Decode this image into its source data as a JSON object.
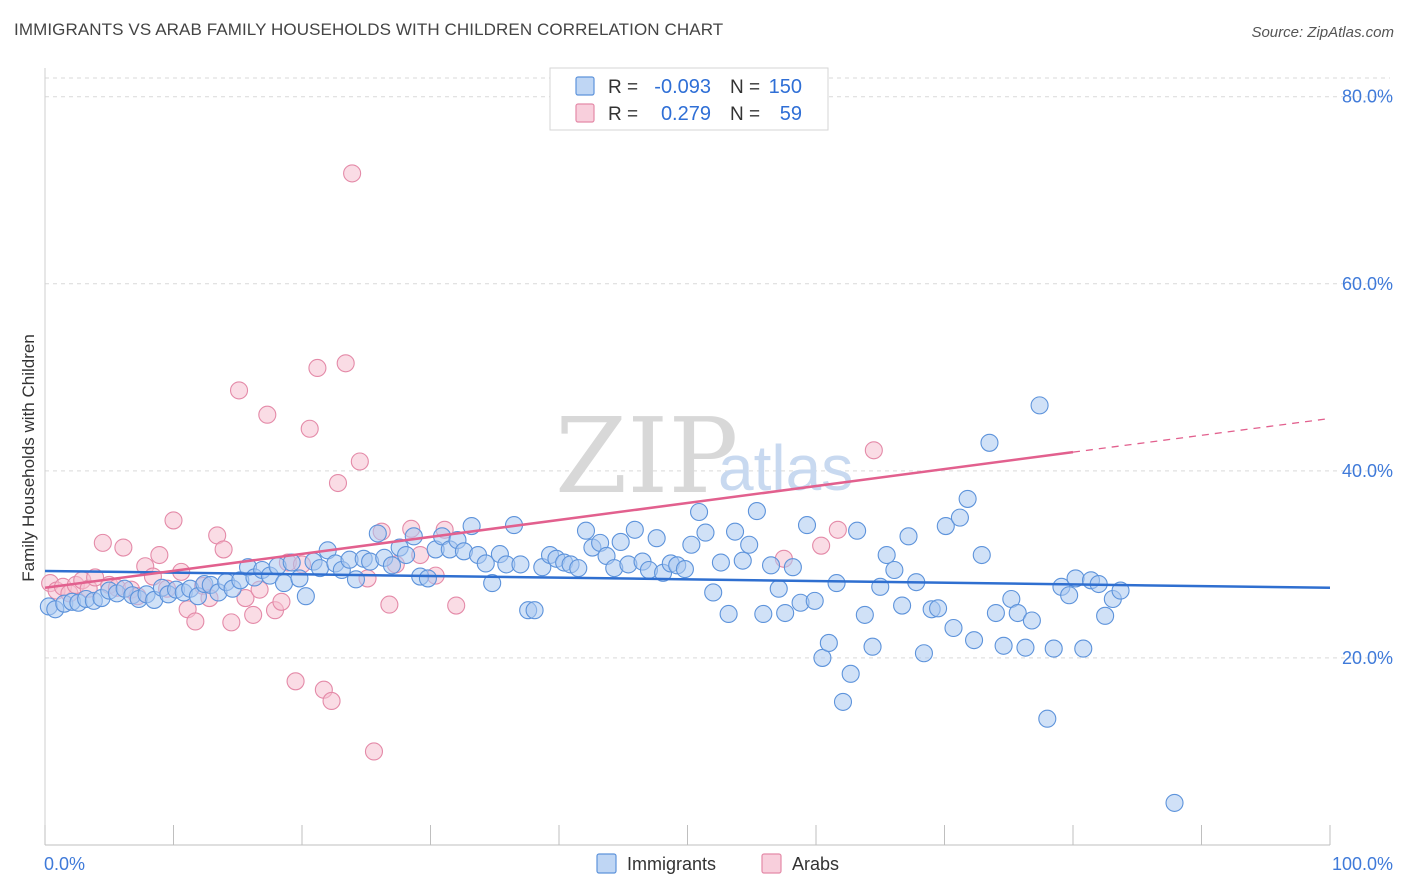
{
  "title": "IMMIGRANTS VS ARAB FAMILY HOUSEHOLDS WITH CHILDREN CORRELATION CHART",
  "source": "Source: ZipAtlas.com",
  "watermark": {
    "zip": "ZIP",
    "atlas": "atlas"
  },
  "colors": {
    "immigrants_fill": "#aac8f0",
    "immigrants_stroke": "#5d93db",
    "immigrants_line": "#2f6fd0",
    "arabs_fill": "#f6bfd0",
    "arabs_stroke": "#e48aa8",
    "arabs_line": "#e2608e",
    "axis_label": "#3f7ad9",
    "grid": "#d9d9d9"
  },
  "legend": {
    "rows": [
      {
        "r_label": "R =",
        "r_value": "-0.093",
        "n_label": "N =",
        "n_value": "150"
      },
      {
        "r_label": "R =",
        "r_value": "0.279",
        "n_label": "N =",
        "n_value": "59"
      }
    ]
  },
  "chart_data": {
    "type": "scatter",
    "title": "IMMIGRANTS VS ARAB FAMILY HOUSEHOLDS WITH CHILDREN CORRELATION CHART",
    "xlabel": "",
    "ylabel": "Family Households with Children",
    "xlim": [
      0,
      100
    ],
    "ylim": [
      0,
      82
    ],
    "x_ticks": [
      "0.0%",
      "100.0%"
    ],
    "y_ticks": [
      {
        "value": 20,
        "label": "20.0%"
      },
      {
        "value": 40,
        "label": "40.0%"
      },
      {
        "value": 60,
        "label": "60.0%"
      },
      {
        "value": 80,
        "label": "80.0%"
      }
    ],
    "grid": true,
    "legend_position": "top-center",
    "series": [
      {
        "name": "Immigrants",
        "r": -0.093,
        "n": 150,
        "trend": {
          "x0": 0,
          "y0": 29.3,
          "x1": 100,
          "y1": 27.5
        },
        "points": [
          [
            0.3,
            25.5
          ],
          [
            0.8,
            25.2
          ],
          [
            1.5,
            25.8
          ],
          [
            2.1,
            26.0
          ],
          [
            2.6,
            25.9
          ],
          [
            3.2,
            26.3
          ],
          [
            3.8,
            26.1
          ],
          [
            4.4,
            26.4
          ],
          [
            5.0,
            27.2
          ],
          [
            5.6,
            26.9
          ],
          [
            6.2,
            27.4
          ],
          [
            6.8,
            26.7
          ],
          [
            7.3,
            26.3
          ],
          [
            7.9,
            26.8
          ],
          [
            8.5,
            26.2
          ],
          [
            9.1,
            27.5
          ],
          [
            9.6,
            26.8
          ],
          [
            10.2,
            27.3
          ],
          [
            10.8,
            27.0
          ],
          [
            11.3,
            27.4
          ],
          [
            11.9,
            26.6
          ],
          [
            12.4,
            27.9
          ],
          [
            12.9,
            27.8
          ],
          [
            13.5,
            27.0
          ],
          [
            14.1,
            28.1
          ],
          [
            14.6,
            27.4
          ],
          [
            15.2,
            28.3
          ],
          [
            15.8,
            29.7
          ],
          [
            16.3,
            28.6
          ],
          [
            16.9,
            29.4
          ],
          [
            17.5,
            28.8
          ],
          [
            18.1,
            29.8
          ],
          [
            18.6,
            28.0
          ],
          [
            19.2,
            30.2
          ],
          [
            19.8,
            28.5
          ],
          [
            20.3,
            26.6
          ],
          [
            20.9,
            30.3
          ],
          [
            21.4,
            29.6
          ],
          [
            22.0,
            31.5
          ],
          [
            22.6,
            30.1
          ],
          [
            23.1,
            29.4
          ],
          [
            23.7,
            30.5
          ],
          [
            24.2,
            28.4
          ],
          [
            24.8,
            30.6
          ],
          [
            25.3,
            30.3
          ],
          [
            25.9,
            33.3
          ],
          [
            26.4,
            30.7
          ],
          [
            27.0,
            29.9
          ],
          [
            27.6,
            31.8
          ],
          [
            28.1,
            31.0
          ],
          [
            28.7,
            33.0
          ],
          [
            29.2,
            28.7
          ],
          [
            29.8,
            28.5
          ],
          [
            30.4,
            31.6
          ],
          [
            30.9,
            33.0
          ],
          [
            31.5,
            31.6
          ],
          [
            32.1,
            32.6
          ],
          [
            32.6,
            31.4
          ],
          [
            33.2,
            34.1
          ],
          [
            33.7,
            31.0
          ],
          [
            34.3,
            30.1
          ],
          [
            34.8,
            28.0
          ],
          [
            35.4,
            31.1
          ],
          [
            35.9,
            30.0
          ],
          [
            36.5,
            34.2
          ],
          [
            37.0,
            30.0
          ],
          [
            37.6,
            25.1
          ],
          [
            38.1,
            25.1
          ],
          [
            38.7,
            29.7
          ],
          [
            39.3,
            31.0
          ],
          [
            39.8,
            30.6
          ],
          [
            40.4,
            30.2
          ],
          [
            40.9,
            30.0
          ],
          [
            41.5,
            29.6
          ],
          [
            42.1,
            33.6
          ],
          [
            42.6,
            31.8
          ],
          [
            43.2,
            32.3
          ],
          [
            43.7,
            30.9
          ],
          [
            44.3,
            29.6
          ],
          [
            44.8,
            32.4
          ],
          [
            45.4,
            30.0
          ],
          [
            45.9,
            33.7
          ],
          [
            46.5,
            30.3
          ],
          [
            47.0,
            29.4
          ],
          [
            47.6,
            32.8
          ],
          [
            48.1,
            29.1
          ],
          [
            48.7,
            30.1
          ],
          [
            49.2,
            29.9
          ],
          [
            49.8,
            29.5
          ],
          [
            50.3,
            32.1
          ],
          [
            50.9,
            35.6
          ],
          [
            51.4,
            33.4
          ],
          [
            52.0,
            27.0
          ],
          [
            52.6,
            30.2
          ],
          [
            53.2,
            24.7
          ],
          [
            53.7,
            33.5
          ],
          [
            54.3,
            30.4
          ],
          [
            54.8,
            32.1
          ],
          [
            55.4,
            35.7
          ],
          [
            55.9,
            24.7
          ],
          [
            56.5,
            29.9
          ],
          [
            57.1,
            27.4
          ],
          [
            57.6,
            24.8
          ],
          [
            58.2,
            29.7
          ],
          [
            58.8,
            25.9
          ],
          [
            59.3,
            34.2
          ],
          [
            59.9,
            26.1
          ],
          [
            60.5,
            20.0
          ],
          [
            61.0,
            21.6
          ],
          [
            61.6,
            28.0
          ],
          [
            62.1,
            15.3
          ],
          [
            62.7,
            18.3
          ],
          [
            63.2,
            33.6
          ],
          [
            63.8,
            24.6
          ],
          [
            64.4,
            21.2
          ],
          [
            65.0,
            27.6
          ],
          [
            65.5,
            31.0
          ],
          [
            66.1,
            29.4
          ],
          [
            66.7,
            25.6
          ],
          [
            67.2,
            33.0
          ],
          [
            67.8,
            28.1
          ],
          [
            68.4,
            20.5
          ],
          [
            69.0,
            25.2
          ],
          [
            69.5,
            25.3
          ],
          [
            70.1,
            34.1
          ],
          [
            70.7,
            23.2
          ],
          [
            71.2,
            35.0
          ],
          [
            71.8,
            37.0
          ],
          [
            72.3,
            21.9
          ],
          [
            72.9,
            31.0
          ],
          [
            73.5,
            43.0
          ],
          [
            74.0,
            24.8
          ],
          [
            74.6,
            21.3
          ],
          [
            75.2,
            26.3
          ],
          [
            75.7,
            24.8
          ],
          [
            76.3,
            21.1
          ],
          [
            76.8,
            24.0
          ],
          [
            77.4,
            47.0
          ],
          [
            78.0,
            13.5
          ],
          [
            78.5,
            21.0
          ],
          [
            79.1,
            27.6
          ],
          [
            79.7,
            26.7
          ],
          [
            80.2,
            28.5
          ],
          [
            80.8,
            21.0
          ],
          [
            81.4,
            28.3
          ],
          [
            82.0,
            27.9
          ],
          [
            82.5,
            24.5
          ],
          [
            83.1,
            26.3
          ],
          [
            83.7,
            27.2
          ],
          [
            87.9,
            4.5
          ]
        ]
      },
      {
        "name": "Arabs",
        "r": 0.279,
        "n": 59,
        "trend": {
          "x0": 0,
          "y0": 27.5,
          "x1": 80,
          "y1": 42.0
        },
        "trend_dashed": {
          "x0": 80,
          "y0": 42.0,
          "x1": 100,
          "y1": 45.6
        },
        "points": [
          [
            0.4,
            28.0
          ],
          [
            0.9,
            27.2
          ],
          [
            1.4,
            27.6
          ],
          [
            1.9,
            26.9
          ],
          [
            2.4,
            27.8
          ],
          [
            2.9,
            28.3
          ],
          [
            3.4,
            27.4
          ],
          [
            3.9,
            28.6
          ],
          [
            4.5,
            32.3
          ],
          [
            5.0,
            27.8
          ],
          [
            5.6,
            27.5
          ],
          [
            6.1,
            31.8
          ],
          [
            6.7,
            27.3
          ],
          [
            7.2,
            26.6
          ],
          [
            7.8,
            29.8
          ],
          [
            8.4,
            28.7
          ],
          [
            8.9,
            31.0
          ],
          [
            9.5,
            27.4
          ],
          [
            10.0,
            34.7
          ],
          [
            10.6,
            29.2
          ],
          [
            11.1,
            25.2
          ],
          [
            11.7,
            23.9
          ],
          [
            12.3,
            27.7
          ],
          [
            12.8,
            26.4
          ],
          [
            13.4,
            33.1
          ],
          [
            13.9,
            31.6
          ],
          [
            14.5,
            23.8
          ],
          [
            15.1,
            48.6
          ],
          [
            15.6,
            26.4
          ],
          [
            16.2,
            24.6
          ],
          [
            16.7,
            27.3
          ],
          [
            17.3,
            46.0
          ],
          [
            17.9,
            25.1
          ],
          [
            18.4,
            26.0
          ],
          [
            18.9,
            30.2
          ],
          [
            19.5,
            17.5
          ],
          [
            20.0,
            30.0
          ],
          [
            20.6,
            44.5
          ],
          [
            21.2,
            51.0
          ],
          [
            21.7,
            16.6
          ],
          [
            22.3,
            15.4
          ],
          [
            22.8,
            38.7
          ],
          [
            23.4,
            51.5
          ],
          [
            23.9,
            71.8
          ],
          [
            24.5,
            41.0
          ],
          [
            25.1,
            28.5
          ],
          [
            25.6,
            10.0
          ],
          [
            26.2,
            33.5
          ],
          [
            26.8,
            25.7
          ],
          [
            27.3,
            30.0
          ],
          [
            28.5,
            33.8
          ],
          [
            29.2,
            31.0
          ],
          [
            30.4,
            28.8
          ],
          [
            31.1,
            33.7
          ],
          [
            32.0,
            25.6
          ],
          [
            60.4,
            32.0
          ],
          [
            61.7,
            33.7
          ],
          [
            64.5,
            42.2
          ],
          [
            57.5,
            30.6
          ]
        ]
      }
    ]
  },
  "bottom_legend": {
    "items": [
      "Immigrants",
      "Arabs"
    ]
  }
}
